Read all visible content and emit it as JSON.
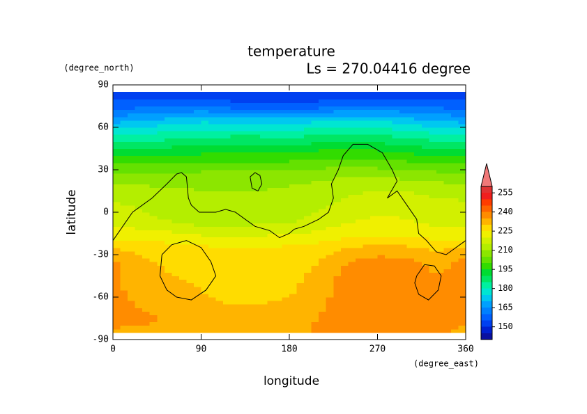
{
  "chart_data": {
    "type": "contour",
    "title": "temperature",
    "subtitle": "Ls = 270.04416 degree",
    "x_label": "longitude",
    "y_label": "latitude",
    "x_unit": "(degree_east)",
    "y_unit": "(degree_north)",
    "xlim": [
      0,
      360
    ],
    "ylim": [
      -90,
      90
    ],
    "xticks": [
      0,
      90,
      180,
      270,
      360
    ],
    "yticks": [
      -90,
      -60,
      -30,
      0,
      30,
      60,
      90
    ],
    "x": [
      0,
      30,
      60,
      90,
      120,
      150,
      180,
      210,
      240,
      270,
      300,
      330,
      360
    ],
    "y": [
      -85,
      -75,
      -65,
      -55,
      -45,
      -35,
      -25,
      -15,
      -5,
      5,
      15,
      25,
      35,
      45,
      55,
      65,
      75,
      85
    ],
    "z": [
      [
        234,
        234,
        233,
        232,
        232,
        232,
        233,
        236,
        237,
        237,
        237,
        236,
        234
      ],
      [
        237,
        236,
        234,
        233,
        232,
        232,
        232,
        235,
        238,
        238,
        238,
        237,
        236
      ],
      [
        237,
        234,
        232,
        231,
        230,
        230,
        231,
        234,
        238,
        238,
        237,
        236,
        237
      ],
      [
        236,
        233,
        231,
        230,
        228,
        228,
        229,
        233,
        237,
        238,
        238,
        236,
        236
      ],
      [
        236,
        232,
        230,
        229,
        227,
        227,
        228,
        232,
        237,
        238,
        237,
        235,
        236
      ],
      [
        236,
        231,
        229,
        228,
        226,
        226,
        227,
        230,
        235,
        237,
        236,
        234,
        236
      ],
      [
        230,
        228,
        227,
        226,
        225,
        225,
        226,
        227,
        230,
        232,
        231,
        229,
        230
      ],
      [
        222,
        222,
        221,
        219,
        218,
        219,
        220,
        221,
        223,
        224,
        223,
        222,
        222
      ],
      [
        218,
        216,
        214,
        212,
        212,
        213,
        214,
        216,
        219,
        221,
        220,
        218,
        218
      ],
      [
        216,
        214,
        213,
        211,
        211,
        212,
        212,
        214,
        217,
        218,
        217,
        216,
        216
      ],
      [
        213,
        212,
        211,
        210,
        210,
        210,
        211,
        212,
        214,
        215,
        215,
        214,
        213
      ],
      [
        207,
        207,
        207,
        208,
        208,
        208,
        208,
        209,
        210,
        210,
        209,
        208,
        207
      ],
      [
        200,
        200,
        200,
        200,
        201,
        201,
        201,
        202,
        203,
        202,
        201,
        200,
        200
      ],
      [
        190,
        190,
        191,
        192,
        192,
        192,
        192,
        194,
        195,
        194,
        192,
        190,
        190
      ],
      [
        180,
        180,
        182,
        183,
        184,
        184,
        183,
        185,
        186,
        185,
        183,
        181,
        180
      ],
      [
        168,
        170,
        172,
        174,
        173,
        172,
        172,
        174,
        176,
        175,
        172,
        170,
        168
      ],
      [
        158,
        159,
        160,
        160,
        158,
        157,
        157,
        158,
        160,
        161,
        160,
        159,
        158
      ],
      [
        150,
        150,
        151,
        151,
        150,
        149,
        149,
        150,
        151,
        151,
        150,
        150,
        150
      ]
    ],
    "levels": [
      140,
      145,
      150,
      155,
      160,
      165,
      170,
      175,
      180,
      185,
      190,
      195,
      200,
      205,
      210,
      215,
      220,
      225,
      230,
      235,
      240,
      245,
      250,
      255,
      260
    ],
    "colors": [
      "#0a10a0",
      "#0020d0",
      "#0040f0",
      "#0060ff",
      "#0080ff",
      "#00a0ff",
      "#00c8f0",
      "#00e6d2",
      "#00f0a0",
      "#00e664",
      "#00dc32",
      "#32dc00",
      "#64e100",
      "#8ce600",
      "#b4ee00",
      "#d2f000",
      "#f0f000",
      "#ffdc00",
      "#ffb400",
      "#ff8c00",
      "#ff6400",
      "#ff3c00",
      "#f01e1e",
      "#e03232"
    ],
    "extend_color": "#f07878",
    "colorbar_ticks": [
      150,
      165,
      180,
      195,
      210,
      225,
      240,
      255
    ],
    "lines": [
      {
        "x": [
          0,
          10,
          20,
          30,
          40,
          55,
          65,
          70,
          75,
          77,
          80,
          88,
          100,
          105,
          115,
          125,
          135,
          145,
          160,
          170,
          180,
          185,
          195,
          210,
          220,
          225,
          223,
          230,
          235,
          245,
          260,
          275,
          285,
          290,
          280,
          290,
          300,
          310,
          312,
          320,
          330,
          340,
          360
        ],
        "y": [
          -20,
          -10,
          0,
          5,
          10,
          20,
          27,
          28,
          25,
          10,
          5,
          0,
          0,
          0,
          2,
          0,
          -5,
          -10,
          -13,
          -18,
          -15,
          -12,
          -10,
          -5,
          0,
          10,
          20,
          30,
          40,
          48,
          48,
          42,
          30,
          22,
          10,
          15,
          5,
          -5,
          -15,
          -20,
          -28,
          -30,
          -20
        ]
      },
      {
        "x": [
          140,
          145,
          150,
          152,
          148,
          142,
          140
        ],
        "y": [
          25,
          28,
          26,
          20,
          15,
          17,
          25
        ]
      },
      {
        "x": [
          50,
          60,
          75,
          90,
          100,
          105,
          95,
          80,
          65,
          55,
          48,
          50
        ],
        "y": [
          -30,
          -23,
          -20,
          -25,
          -35,
          -45,
          -55,
          -62,
          -60,
          -55,
          -45,
          -30
        ]
      },
      {
        "x": [
          310,
          318,
          328,
          335,
          332,
          322,
          312,
          308,
          310
        ],
        "y": [
          -45,
          -37,
          -38,
          -45,
          -55,
          -62,
          -58,
          -50,
          -45
        ]
      }
    ]
  }
}
